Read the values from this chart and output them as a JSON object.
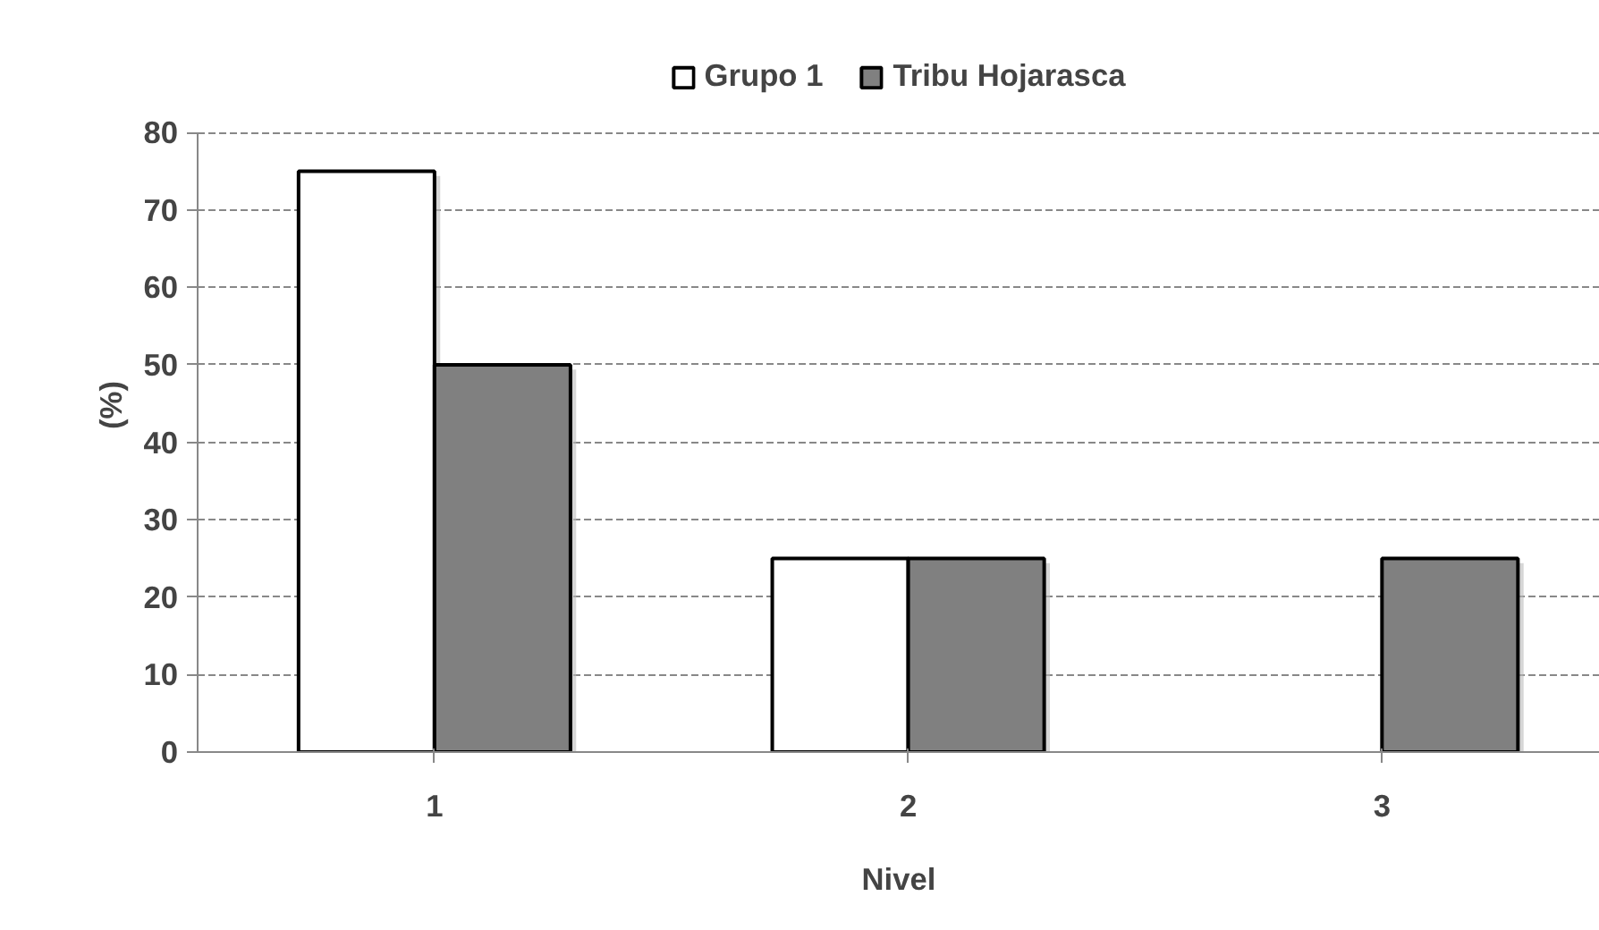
{
  "chart_data": {
    "type": "bar",
    "xlabel": "Nivel",
    "ylabel": "(%)",
    "categories": [
      "1",
      "2",
      "3"
    ],
    "series": [
      {
        "name": "Grupo 1",
        "color": "#ffffff",
        "values": [
          75,
          25,
          null
        ]
      },
      {
        "name": "Tribu Hojarasca",
        "color": "#808080",
        "values": [
          50,
          25,
          25
        ]
      }
    ],
    "ylim": [
      0,
      80
    ],
    "yticks": [
      0,
      10,
      20,
      30,
      40,
      50,
      60,
      70,
      80
    ],
    "grid": "y",
    "legend": "top"
  }
}
